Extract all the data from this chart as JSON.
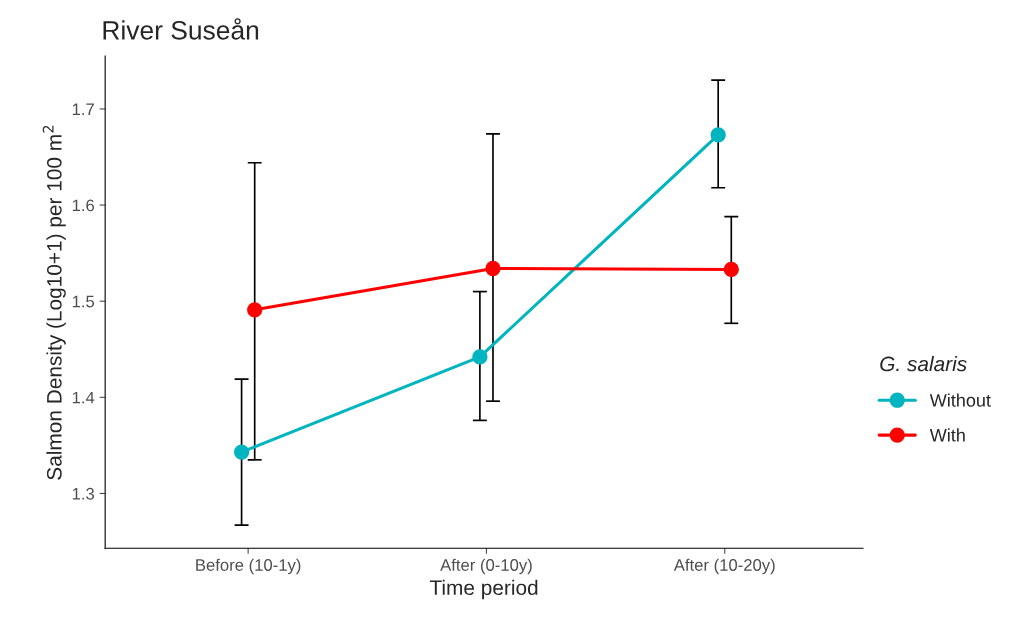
{
  "chart_data": {
    "type": "line",
    "title": "River Suseån",
    "xlabel": "Time period",
    "ylabel": "Salmon Density (Log10+1) per 100 m$^{2}$",
    "legend_title": "G. salaris",
    "categories": [
      "Before (10-1y)",
      "After (0-10y)",
      "After (10-20y)"
    ],
    "series": [
      {
        "name": "Without",
        "color": "#00b4c0",
        "values": [
          1.343,
          1.442,
          1.673
        ],
        "errors": [
          [
            1.267,
            1.419
          ],
          [
            1.376,
            1.51
          ],
          [
            1.618,
            1.73
          ]
        ]
      },
      {
        "name": "With",
        "color": "#ff0000",
        "values": [
          1.491,
          1.534,
          1.533
        ],
        "errors": [
          [
            1.335,
            1.644
          ],
          [
            1.396,
            1.674
          ],
          [
            1.477,
            1.588
          ]
        ]
      }
    ],
    "ylim": [
      1.243,
      1.755
    ],
    "yticks": [
      1.3,
      1.4,
      1.5,
      1.6,
      1.7
    ],
    "grid": false,
    "legend": "right",
    "marker": "circle",
    "line_style": "solid"
  }
}
